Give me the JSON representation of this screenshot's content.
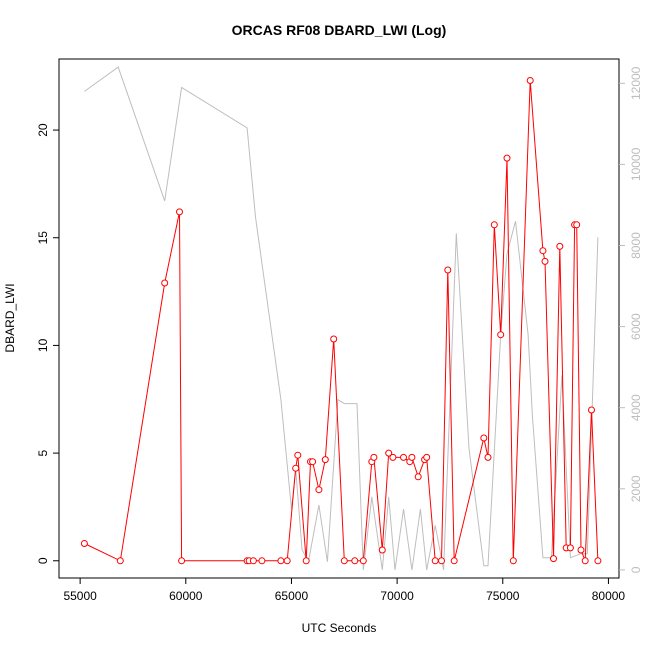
{
  "chart_data": {
    "type": "line",
    "title": "ORCAS RF08 DBARD_LWI (Log)",
    "xlabel": "UTC Seconds",
    "ylabel": "DBARD_LWI",
    "xlim": [
      54000,
      80500
    ],
    "ylim": [
      -0.8,
      23.3
    ],
    "y2lim": [
      -200,
      12600
    ],
    "xticks": [
      "55000",
      "60000",
      "65000",
      "70000",
      "75000",
      "80000"
    ],
    "yticks": [
      "0",
      "5",
      "10",
      "15",
      "20"
    ],
    "y2ticks": [
      "0",
      "2000",
      "4000",
      "6000",
      "8000",
      "10000",
      "12000"
    ],
    "colors": {
      "primary": "#ff0000",
      "secondary": "#bebebe"
    },
    "series": [
      {
        "axis": "left",
        "marker": "open-circle",
        "x": [
          55200,
          56900,
          59000,
          59700,
          59800,
          62900,
          63000,
          63200,
          63600,
          64500,
          64800,
          65200,
          65300,
          65700,
          65900,
          66000,
          66300,
          66600,
          67000,
          67500,
          68000,
          68400,
          68800,
          68900,
          69300,
          69600,
          69800,
          70300,
          70600,
          70700,
          71000,
          71300,
          71400,
          71800,
          72100,
          72400,
          72700,
          74100,
          74300,
          74600,
          74900,
          75200,
          75500,
          76300,
          76900,
          77000,
          77400,
          77700,
          78000,
          78200,
          78400,
          78500,
          78700,
          78900,
          79200,
          79500
        ],
        "y": [
          0.8,
          0.0,
          12.9,
          16.2,
          0.0,
          0.0,
          0.0,
          0.0,
          0.0,
          0.0,
          0.0,
          4.3,
          4.9,
          0.0,
          4.6,
          4.6,
          3.3,
          4.7,
          10.3,
          0.0,
          0.0,
          0.0,
          4.6,
          4.8,
          0.5,
          5.0,
          4.8,
          4.8,
          4.6,
          4.8,
          3.9,
          4.7,
          4.8,
          0.0,
          0.0,
          13.5,
          0.0,
          5.7,
          4.8,
          15.6,
          10.5,
          18.7,
          0.0,
          22.3,
          14.4,
          13.9,
          0.1,
          14.6,
          0.6,
          0.6,
          15.6,
          15.6,
          0.5,
          0.0,
          7.0,
          0.0
        ]
      },
      {
        "axis": "right",
        "marker": "none",
        "x": [
          55200,
          56800,
          59000,
          59800,
          62900,
          63300,
          64500,
          65000,
          65200,
          65500,
          65800,
          66300,
          66700,
          67200,
          67500,
          68100,
          68400,
          68800,
          69300,
          69600,
          69900,
          70300,
          70700,
          71100,
          71400,
          71800,
          72200,
          72800,
          73400,
          74100,
          74300,
          74900,
          75200,
          75600,
          76200,
          76400,
          76900,
          77300,
          77800,
          78200,
          78700,
          79000,
          79500
        ],
        "y": [
          11800,
          12400,
          9100,
          11900,
          10900,
          8700,
          4200,
          1500,
          2500,
          500,
          200,
          1600,
          200,
          4200,
          4100,
          4100,
          0,
          1800,
          0,
          1800,
          0,
          1500,
          0,
          1500,
          0,
          1100,
          0,
          8300,
          3000,
          100,
          100,
          5800,
          7800,
          8600,
          5800,
          3800,
          300,
          300,
          4800,
          300,
          400,
          400,
          8200
        ]
      }
    ]
  }
}
